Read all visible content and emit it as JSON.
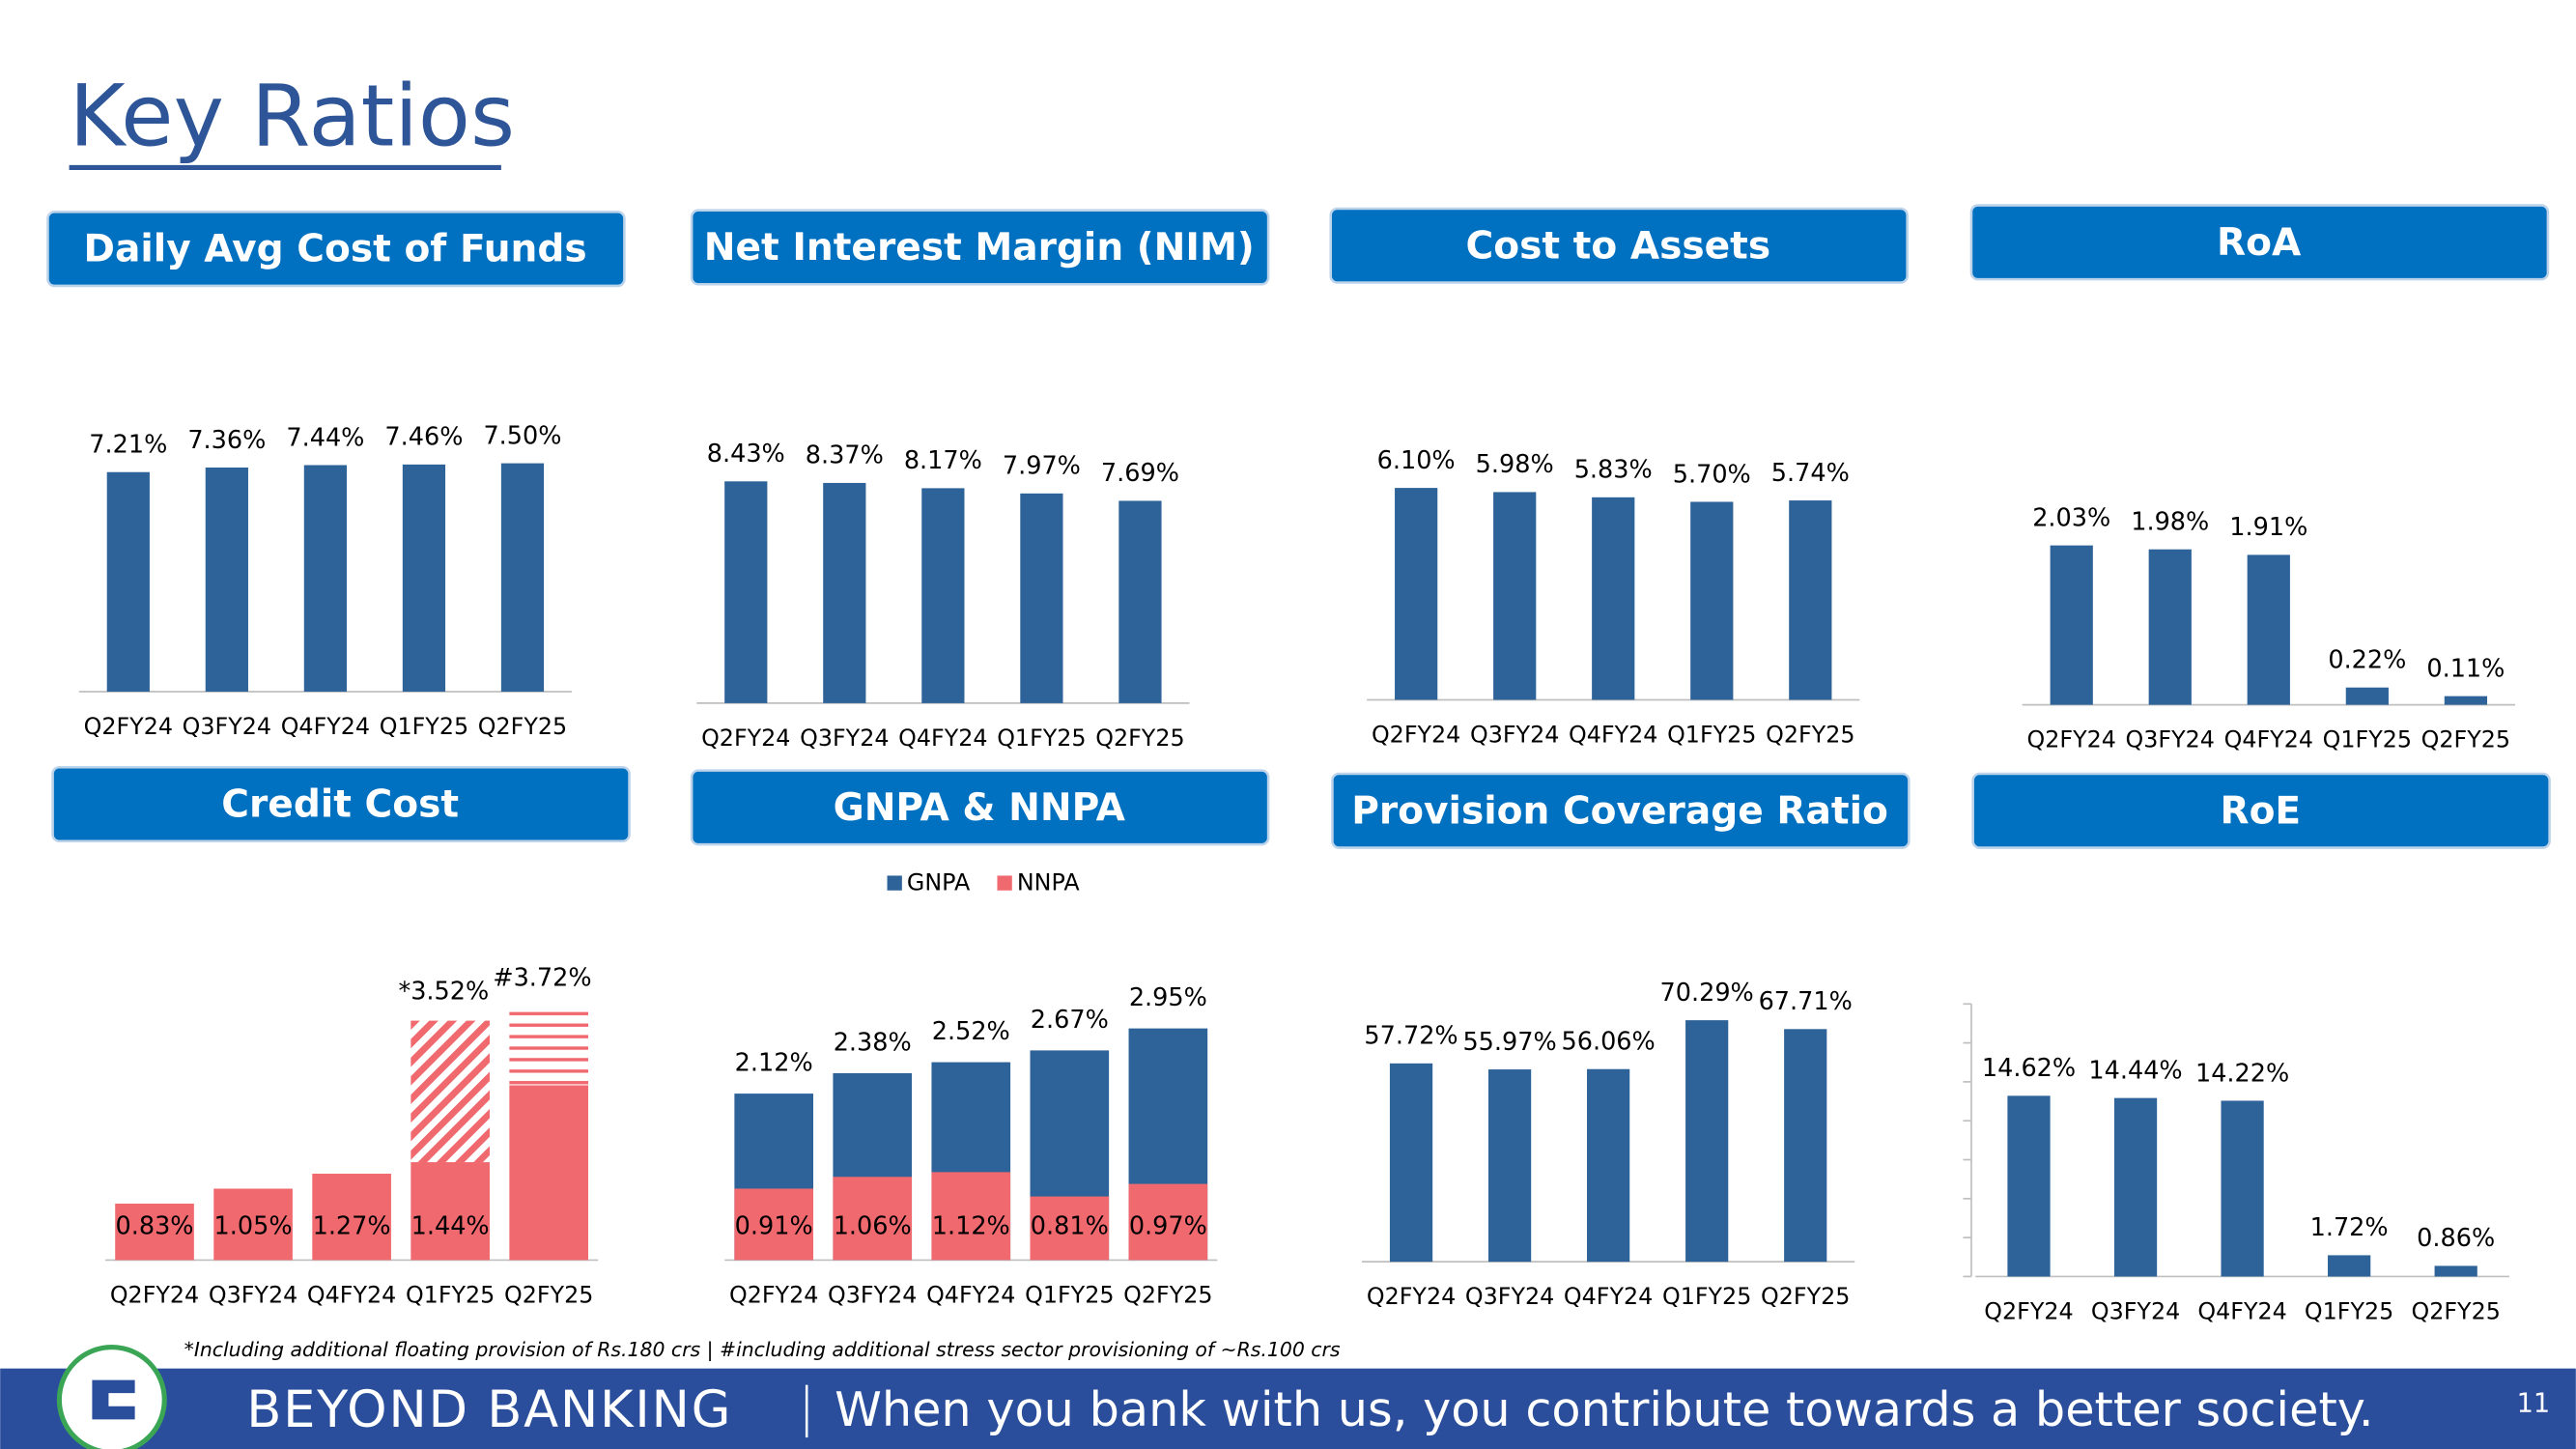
{
  "title": "Key Ratios",
  "chart_data": [
    {
      "type": "bar",
      "title": "Daily Avg Cost of Funds",
      "categories": [
        "Q2FY24",
        "Q3FY24",
        "Q4FY24",
        "Q1FY25",
        "Q2FY25"
      ],
      "values": [
        7.21,
        7.36,
        7.44,
        7.46,
        7.5
      ],
      "value_labels": [
        "7.21%",
        "7.36%",
        "7.44%",
        "7.46%",
        "7.50%"
      ],
      "color": "#2e6399"
    },
    {
      "type": "bar",
      "title": "Net Interest Margin (NIM)",
      "categories": [
        "Q2FY24",
        "Q3FY24",
        "Q4FY24",
        "Q1FY25",
        "Q2FY25"
      ],
      "values": [
        8.43,
        8.37,
        8.17,
        7.97,
        7.69
      ],
      "value_labels": [
        "8.43%",
        "8.37%",
        "8.17%",
        "7.97%",
        "7.69%"
      ],
      "color": "#2e6399"
    },
    {
      "type": "bar",
      "title": "Cost to Assets",
      "categories": [
        "Q2FY24",
        "Q3FY24",
        "Q4FY24",
        "Q1FY25",
        "Q2FY25"
      ],
      "values": [
        6.1,
        5.98,
        5.83,
        5.7,
        5.74
      ],
      "value_labels": [
        "6.10%",
        "5.98%",
        "5.83%",
        "5.70%",
        "5.74%"
      ],
      "color": "#2e6399"
    },
    {
      "type": "bar",
      "title": "RoA",
      "categories": [
        "Q2FY24",
        "Q3FY24",
        "Q4FY24",
        "Q1FY25",
        "Q2FY25"
      ],
      "values": [
        2.03,
        1.98,
        1.91,
        0.22,
        0.11
      ],
      "value_labels": [
        "2.03%",
        "1.98%",
        "1.91%",
        "0.22%",
        "0.11%"
      ],
      "color": "#2e6399"
    },
    {
      "type": "stacked_bar",
      "title": "Credit Cost",
      "categories": [
        "Q2FY24",
        "Q3FY24",
        "Q4FY24",
        "Q1FY25",
        "Q2FY25"
      ],
      "series": [
        {
          "color": "#f0696e",
          "values": [
            0.83,
            1.05,
            1.27,
            1.44,
            2.57
          ],
          "value_labels": [
            "0.83%",
            "1.05%",
            "1.27%",
            "1.44%",
            null
          ]
        },
        {
          "color": "#f0696e",
          "values": [
            null,
            null,
            null,
            2.08,
            1.15
          ],
          "hatch": [
            null,
            null,
            null,
            "diagonal",
            "horizontal"
          ]
        }
      ],
      "totals": [
        null,
        null,
        null,
        3.52,
        3.72
      ],
      "total_labels": [
        null,
        null,
        null,
        "*3.52%",
        "#3.72%"
      ]
    },
    {
      "type": "overlap_bar",
      "title": "GNPA & NNPA",
      "categories": [
        "Q2FY24",
        "Q3FY24",
        "Q4FY24",
        "Q1FY25",
        "Q2FY25"
      ],
      "series": [
        {
          "name": "GNPA",
          "color": "#2e6399",
          "values": [
            2.12,
            2.38,
            2.52,
            2.67,
            2.95
          ],
          "value_labels": [
            "2.12%",
            "2.38%",
            "2.52%",
            "2.67%",
            "2.95%"
          ]
        },
        {
          "name": "NNPA",
          "color": "#f0696e",
          "values": [
            0.91,
            1.06,
            1.12,
            0.81,
            0.97
          ],
          "value_labels": [
            "0.91%",
            "1.06%",
            "1.12%",
            "0.81%",
            "0.97%"
          ]
        }
      ],
      "legend": "top"
    },
    {
      "type": "bar",
      "title": "Provision Coverage Ratio",
      "categories": [
        "Q2FY24",
        "Q3FY24",
        "Q4FY24",
        "Q1FY25",
        "Q2FY25"
      ],
      "values": [
        57.72,
        55.97,
        56.06,
        70.29,
        67.71
      ],
      "value_labels": [
        "57.72%",
        "55.97%",
        "56.06%",
        "70.29%",
        "67.71%"
      ],
      "color": "#2e6399"
    },
    {
      "type": "bar",
      "title": "RoE",
      "categories": [
        "Q2FY24",
        "Q3FY24",
        "Q4FY24",
        "Q1FY25",
        "Q2FY25"
      ],
      "values": [
        14.62,
        14.44,
        14.22,
        1.72,
        0.86
      ],
      "value_labels": [
        "14.62%",
        "14.44%",
        "14.22%",
        "1.72%",
        "0.86%"
      ],
      "color": "#2e6399"
    }
  ],
  "footnote": "*Including additional floating provision of Rs.180 crs | #including additional stress sector provisioning of ~Rs.100 crs",
  "footer": {
    "brand": "BEYOND BANKING",
    "tagline": "When you bank with us, you contribute towards a better society.",
    "page": 11
  }
}
